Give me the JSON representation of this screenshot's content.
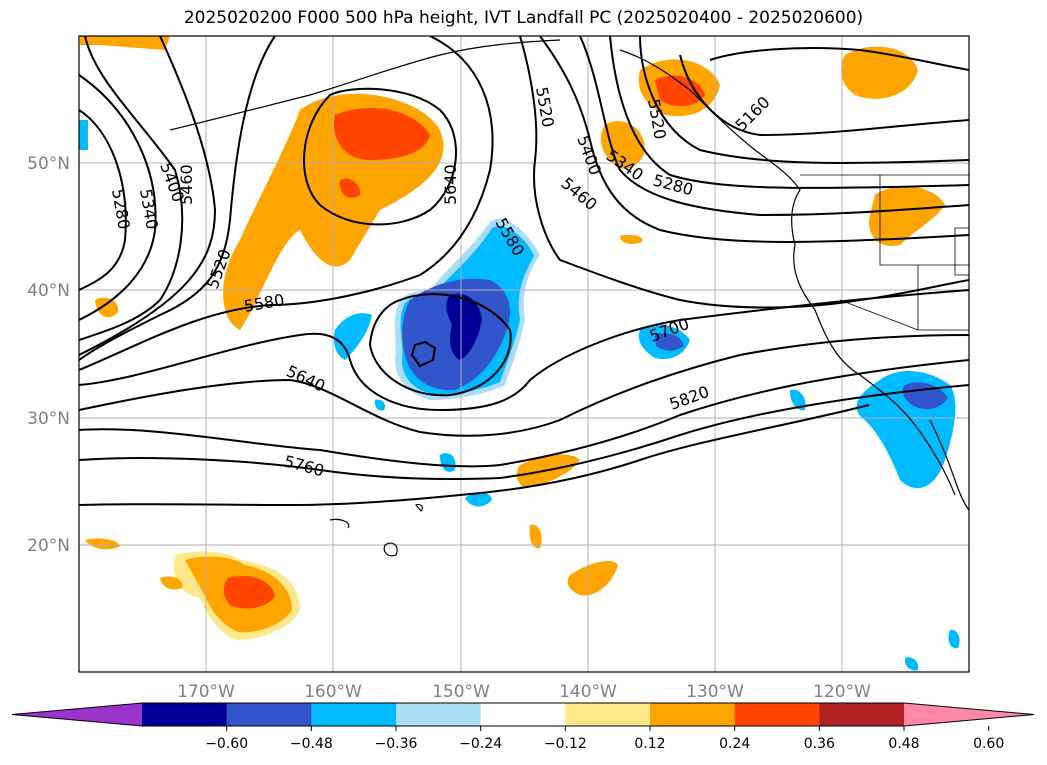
{
  "title": "2025020200 F000 500 hPa height, IVT Landfall PC (2025020400 - 2025020600)",
  "latitude_labels": [
    "50°N",
    "40°N",
    "30°N",
    "20°N"
  ],
  "longitude_labels": [
    "170°W",
    "160°W",
    "150°W",
    "140°W",
    "130°W",
    "120°W"
  ],
  "contour_labels": [
    "5280",
    "5340",
    "5400",
    "5460",
    "5520",
    "5580",
    "5640",
    "5580",
    "5640",
    "5760",
    "5820",
    "5700",
    "5520",
    "5400",
    "5340",
    "5460",
    "5280",
    "5160"
  ],
  "colorbar": {
    "tick_labels": [
      "−0.60",
      "−0.48",
      "−0.36",
      "−0.24",
      "−0.12",
      "0.12",
      "0.24",
      "0.36",
      "0.48",
      "0.60"
    ],
    "colors": [
      "#9933cc",
      "#000099",
      "#3355cc",
      "#00bbff",
      "#aaddf7",
      "#ffffff",
      "#ffe88a",
      "#ffa500",
      "#ff4500",
      "#b22222",
      "#ff88aa"
    ],
    "extend": "both"
  },
  "colors": {
    "gridline": "#b0b0b0",
    "contour": "#000000",
    "coastline": "#000000"
  }
}
